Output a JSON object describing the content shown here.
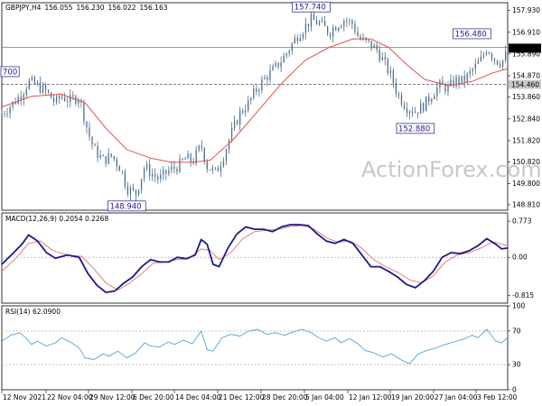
{
  "chart_data": [
    {
      "type": "candlestick",
      "title": "GBPJPY,H4",
      "ohlc": [
        "156.055",
        "156.230",
        "156.022",
        "156.163"
      ],
      "y_ticks": [
        157.93,
        156.91,
        155.89,
        154.87,
        153.86,
        152.84,
        151.82,
        150.82,
        149.8,
        148.81
      ],
      "y_tick_labels": [
        "157.930",
        "156.910",
        "155.890",
        "154.870",
        "153.860",
        "152.840",
        "151.820",
        "150.820",
        "149.800",
        "148.810"
      ],
      "ylim": [
        148.55,
        158.3
      ],
      "x_ticks": [
        "12 Nov 2021",
        "22 Nov 04:00",
        "29 Nov 12:00",
        "6 Dec 20:00",
        "14 Dec 04:00",
        "21 Dec 12:00",
        "28 Dec 20:00",
        "5 Jan 04:00",
        "12 Jan 12:00",
        "19 Jan 20:00",
        "27 Jan 04:00",
        "3 Feb 12:00"
      ],
      "current_price": 156.163,
      "current_price_label": "156.163",
      "support_level": 154.46,
      "support_label": "154.460",
      "resistance_level": 156.2,
      "annotations": [
        {
          "label": "157.740",
          "value": 157.74
        },
        {
          "label": "156.480",
          "value": 156.48
        },
        {
          "label": "152.880",
          "value": 152.88
        },
        {
          "label": "148.940",
          "value": 148.94
        },
        {
          "label": "700",
          "value": 154.7
        }
      ],
      "close_path": [
        [
          0,
          153.1
        ],
        [
          4,
          153.6
        ],
        [
          7,
          154.1
        ],
        [
          9,
          154.6
        ],
        [
          12,
          154.4
        ],
        [
          15,
          154.1
        ],
        [
          18,
          153.6
        ],
        [
          20,
          153.9
        ],
        [
          23,
          153.7
        ],
        [
          26,
          153.9
        ],
        [
          29,
          152.2
        ],
        [
          31,
          151.4
        ],
        [
          34,
          150.9
        ],
        [
          37,
          151.1
        ],
        [
          40,
          150.5
        ],
        [
          42,
          149.6
        ],
        [
          45,
          149.3
        ],
        [
          48,
          150.6
        ],
        [
          50,
          150.3
        ],
        [
          53,
          150.0
        ],
        [
          56,
          150.4
        ],
        [
          59,
          150.6
        ],
        [
          62,
          151.0
        ],
        [
          64,
          150.8
        ],
        [
          67,
          151.6
        ],
        [
          69,
          150.6
        ],
        [
          72,
          150.3
        ],
        [
          75,
          151.3
        ],
        [
          77,
          152.1
        ],
        [
          80,
          153.1
        ],
        [
          83,
          153.6
        ],
        [
          85,
          154.1
        ],
        [
          88,
          154.7
        ],
        [
          91,
          155.1
        ],
        [
          94,
          155.6
        ],
        [
          96,
          156.0
        ],
        [
          99,
          156.7
        ],
        [
          102,
          157.2
        ],
        [
          104,
          157.5
        ],
        [
          107,
          157.3
        ],
        [
          110,
          156.9
        ],
        [
          112,
          157.2
        ],
        [
          115,
          157.5
        ],
        [
          118,
          157.3
        ],
        [
          120,
          156.6
        ],
        [
          123,
          156.4
        ],
        [
          126,
          156.1
        ],
        [
          128,
          155.6
        ],
        [
          131,
          154.8
        ],
        [
          133,
          154.0
        ],
        [
          136,
          153.4
        ],
        [
          139,
          153.2
        ],
        [
          142,
          153.5
        ],
        [
          144,
          153.9
        ],
        [
          147,
          154.4
        ],
        [
          150,
          154.3
        ],
        [
          153,
          154.7
        ],
        [
          155,
          154.6
        ],
        [
          158,
          155.1
        ],
        [
          161,
          155.6
        ],
        [
          163,
          156.2
        ],
        [
          166,
          155.6
        ],
        [
          168,
          155.5
        ],
        [
          170,
          156.0
        ]
      ],
      "ma_path": [
        [
          0,
          153.4
        ],
        [
          10,
          153.9
        ],
        [
          20,
          154.0
        ],
        [
          28,
          153.6
        ],
        [
          35,
          152.4
        ],
        [
          42,
          151.4
        ],
        [
          50,
          151.0
        ],
        [
          57,
          150.8
        ],
        [
          64,
          150.8
        ],
        [
          70,
          150.9
        ],
        [
          78,
          151.9
        ],
        [
          86,
          153.2
        ],
        [
          94,
          154.5
        ],
        [
          102,
          155.6
        ],
        [
          110,
          156.2
        ],
        [
          118,
          156.6
        ],
        [
          124,
          156.6
        ],
        [
          130,
          156.2
        ],
        [
          136,
          155.4
        ],
        [
          142,
          154.7
        ],
        [
          150,
          154.4
        ],
        [
          158,
          154.6
        ],
        [
          165,
          155.0
        ],
        [
          170,
          155.2
        ]
      ]
    },
    {
      "type": "line",
      "title": "MACD(12,26,9) 0.2054 0.2268",
      "y_ticks": [
        0.773,
        0.0,
        -0.815
      ],
      "y_tick_labels": [
        "0.773",
        "0.00",
        "-0.815"
      ],
      "ylim": [
        -0.98,
        0.95
      ],
      "series": [
        {
          "values": [
            [
              0,
              -0.15
            ],
            [
              4,
              0.1
            ],
            [
              7,
              0.3
            ],
            [
              9,
              0.48
            ],
            [
              12,
              0.35
            ],
            [
              15,
              0.1
            ],
            [
              18,
              -0.02
            ],
            [
              22,
              0.05
            ],
            [
              26,
              0.0
            ],
            [
              29,
              -0.35
            ],
            [
              32,
              -0.6
            ],
            [
              35,
              -0.75
            ],
            [
              38,
              -0.72
            ],
            [
              41,
              -0.55
            ],
            [
              44,
              -0.42
            ],
            [
              47,
              -0.2
            ],
            [
              50,
              -0.05
            ],
            [
              53,
              -0.1
            ],
            [
              56,
              -0.1
            ],
            [
              59,
              0.0
            ],
            [
              62,
              -0.03
            ],
            [
              65,
              0.05
            ],
            [
              67,
              0.38
            ],
            [
              69,
              0.28
            ],
            [
              71,
              -0.15
            ],
            [
              73,
              -0.2
            ],
            [
              76,
              0.2
            ],
            [
              79,
              0.5
            ],
            [
              82,
              0.65
            ],
            [
              85,
              0.6
            ],
            [
              88,
              0.6
            ],
            [
              91,
              0.55
            ],
            [
              94,
              0.65
            ],
            [
              97,
              0.7
            ],
            [
              100,
              0.7
            ],
            [
              103,
              0.68
            ],
            [
              106,
              0.5
            ],
            [
              109,
              0.35
            ],
            [
              112,
              0.3
            ],
            [
              115,
              0.38
            ],
            [
              118,
              0.3
            ],
            [
              121,
              0.05
            ],
            [
              124,
              -0.2
            ],
            [
              127,
              -0.2
            ],
            [
              130,
              -0.3
            ],
            [
              133,
              -0.42
            ],
            [
              136,
              -0.58
            ],
            [
              139,
              -0.65
            ],
            [
              142,
              -0.5
            ],
            [
              145,
              -0.3
            ],
            [
              148,
              0.0
            ],
            [
              151,
              0.1
            ],
            [
              154,
              0.08
            ],
            [
              157,
              0.14
            ],
            [
              160,
              0.25
            ],
            [
              163,
              0.4
            ],
            [
              166,
              0.28
            ],
            [
              168,
              0.18
            ],
            [
              170,
              0.2
            ]
          ]
        },
        {
          "values": [
            [
              0,
              -0.3
            ],
            [
              5,
              0.0
            ],
            [
              9,
              0.3
            ],
            [
              13,
              0.35
            ],
            [
              17,
              0.15
            ],
            [
              22,
              0.05
            ],
            [
              27,
              0.02
            ],
            [
              31,
              -0.25
            ],
            [
              35,
              -0.55
            ],
            [
              39,
              -0.7
            ],
            [
              43,
              -0.55
            ],
            [
              47,
              -0.35
            ],
            [
              51,
              -0.12
            ],
            [
              55,
              -0.1
            ],
            [
              59,
              -0.05
            ],
            [
              63,
              -0.02
            ],
            [
              67,
              0.18
            ],
            [
              70,
              0.15
            ],
            [
              73,
              -0.05
            ],
            [
              77,
              0.1
            ],
            [
              81,
              0.4
            ],
            [
              85,
              0.55
            ],
            [
              89,
              0.58
            ],
            [
              93,
              0.6
            ],
            [
              97,
              0.66
            ],
            [
              101,
              0.68
            ],
            [
              105,
              0.6
            ],
            [
              109,
              0.42
            ],
            [
              113,
              0.32
            ],
            [
              117,
              0.35
            ],
            [
              121,
              0.2
            ],
            [
              125,
              -0.05
            ],
            [
              129,
              -0.2
            ],
            [
              133,
              -0.32
            ],
            [
              137,
              -0.48
            ],
            [
              141,
              -0.55
            ],
            [
              145,
              -0.4
            ],
            [
              149,
              -0.1
            ],
            [
              153,
              0.05
            ],
            [
              157,
              0.1
            ],
            [
              161,
              0.2
            ],
            [
              165,
              0.33
            ],
            [
              170,
              0.25
            ]
          ]
        }
      ]
    },
    {
      "type": "line",
      "title": "RSI(14) 62.0900",
      "y_ticks": [
        100,
        70,
        30,
        0
      ],
      "y_tick_labels": [
        "100",
        "70",
        "30",
        "0"
      ],
      "ylim": [
        0,
        100
      ],
      "series": [
        {
          "values": [
            [
              0,
              58
            ],
            [
              3,
              65
            ],
            [
              6,
              68
            ],
            [
              8,
              62
            ],
            [
              10,
              54
            ],
            [
              12,
              58
            ],
            [
              15,
              52
            ],
            [
              18,
              56
            ],
            [
              20,
              62
            ],
            [
              23,
              57
            ],
            [
              26,
              50
            ],
            [
              28,
              38
            ],
            [
              31,
              36
            ],
            [
              34,
              43
            ],
            [
              36,
              40
            ],
            [
              39,
              46
            ],
            [
              42,
              38
            ],
            [
              45,
              44
            ],
            [
              48,
              56
            ],
            [
              50,
              52
            ],
            [
              53,
              51
            ],
            [
              56,
              57
            ],
            [
              58,
              54
            ],
            [
              61,
              59
            ],
            [
              64,
              55
            ],
            [
              67,
              70
            ],
            [
              69,
              48
            ],
            [
              71,
              46
            ],
            [
              74,
              62
            ],
            [
              77,
              66
            ],
            [
              80,
              64
            ],
            [
              83,
              70
            ],
            [
              86,
              72
            ],
            [
              89,
              66
            ],
            [
              92,
              68
            ],
            [
              95,
              65
            ],
            [
              98,
              69
            ],
            [
              101,
              72
            ],
            [
              104,
              68
            ],
            [
              106,
              63
            ],
            [
              109,
              58
            ],
            [
              112,
              62
            ],
            [
              114,
              56
            ],
            [
              117,
              61
            ],
            [
              120,
              54
            ],
            [
              122,
              47
            ],
            [
              125,
              44
            ],
            [
              128,
              39
            ],
            [
              131,
              43
            ],
            [
              134,
              36
            ],
            [
              137,
              31
            ],
            [
              140,
              43
            ],
            [
              143,
              47
            ],
            [
              146,
              50
            ],
            [
              149,
              54
            ],
            [
              152,
              57
            ],
            [
              155,
              60
            ],
            [
              158,
              65
            ],
            [
              160,
              62
            ],
            [
              163,
              72
            ],
            [
              166,
              58
            ],
            [
              168,
              56
            ],
            [
              170,
              62
            ]
          ]
        }
      ]
    }
  ],
  "watermark": "ActionForex.com",
  "colors": {
    "candle": "#4c6f8c",
    "ma": "#e05050",
    "macd": "#1b1b8a",
    "signal": "#e07070",
    "rsi": "#4ea3d8",
    "annotation": "#1a1a8c"
  }
}
